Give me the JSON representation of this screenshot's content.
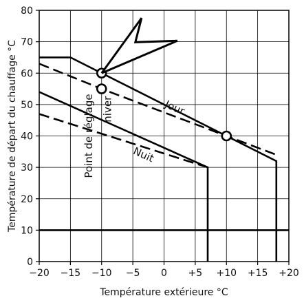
{
  "chart_data": {
    "type": "line",
    "xlabel": "Température extérieure  °C",
    "ylabel": "Température de départ du chauffage  °C",
    "xlim": [
      -20,
      20
    ],
    "ylim": [
      0,
      80
    ],
    "x_ticks": [
      -20,
      -15,
      -10,
      -5,
      0,
      5,
      10,
      15,
      20
    ],
    "x_tick_labels": [
      "−20",
      "−15",
      "−10",
      "−5",
      "0",
      "+5",
      "+10",
      "+15",
      "+20"
    ],
    "y_ticks": [
      0,
      10,
      20,
      30,
      40,
      50,
      60,
      70,
      80
    ],
    "y_tick_labels": [
      "0",
      "10",
      "20",
      "30",
      "40",
      "50",
      "60",
      "70",
      "80"
    ],
    "grid": true,
    "series": [
      {
        "style": "solid",
        "points": [
          [
            -20,
            65
          ],
          [
            -15,
            65
          ],
          [
            18,
            32
          ],
          [
            18,
            0
          ]
        ]
      },
      {
        "style": "dashed",
        "points": [
          [
            -20,
            63
          ],
          [
            -10,
            55
          ],
          [
            10,
            40
          ],
          [
            18,
            34
          ]
        ]
      },
      {
        "style": "solid",
        "points": [
          [
            -20,
            54
          ],
          [
            7,
            30
          ],
          [
            7,
            0
          ]
        ]
      },
      {
        "style": "dashed",
        "points": [
          [
            -20,
            47
          ],
          [
            7,
            30
          ]
        ]
      },
      {
        "style": "solid",
        "points": [
          [
            -20,
            10
          ],
          [
            20,
            10
          ]
        ]
      }
    ],
    "markers": [
      {
        "shape": "open-circle",
        "x": -10,
        "y": 60
      },
      {
        "shape": "open-circle",
        "x": -10,
        "y": 55
      },
      {
        "shape": "open-circle",
        "x": 10,
        "y": 40
      }
    ],
    "annotations": [
      {
        "text": "Jour",
        "x": 1.5,
        "y": 48,
        "rotate": 24
      },
      {
        "text": "Nuit",
        "x": -3.5,
        "y": 33,
        "rotate": 24
      },
      {
        "text": "Point de réglage",
        "x": -11.5,
        "y": 40,
        "rotate": -90
      },
      {
        "text": "hiver",
        "x": -8.5,
        "y": 48.5,
        "rotate": -90
      }
    ],
    "pointer": {
      "type": "arrow-outline",
      "tip": [
        -10,
        60
      ]
    }
  }
}
